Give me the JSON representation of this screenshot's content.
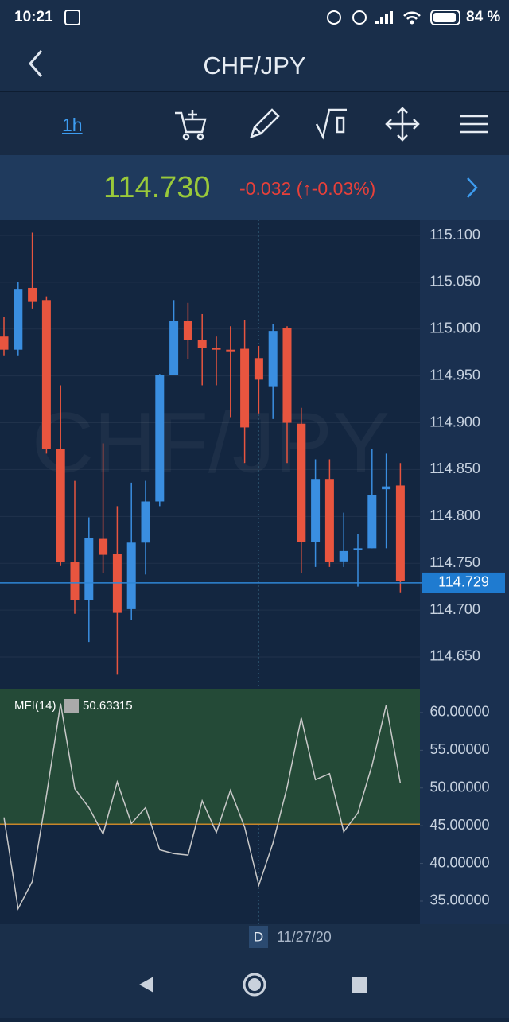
{
  "status_bar": {
    "time": "10:21",
    "battery": "84 %"
  },
  "header": {
    "title": "CHF/JPY"
  },
  "toolbar": {
    "timeframe": "1h"
  },
  "quote": {
    "price": "114.730",
    "change": "-0.032 (↑-0.03%)"
  },
  "footer": {
    "mode": "D",
    "date": "11/27/20"
  },
  "chart_data": [
    {
      "type": "candlestick",
      "watermark": "CHF/JPY",
      "open": [
        114.992,
        114.978,
        115.044,
        115.031,
        114.872,
        114.751,
        114.711,
        114.776,
        114.76,
        114.701,
        114.772,
        114.816,
        114.951,
        115.009,
        114.988,
        114.98,
        114.978,
        114.979,
        114.969,
        114.939,
        115.001,
        114.899,
        114.773,
        114.84,
        114.752,
        114.765,
        114.766,
        114.829,
        114.833
      ],
      "high": [
        115.013,
        115.05,
        115.103,
        115.035,
        114.94,
        114.838,
        114.799,
        114.878,
        114.811,
        114.836,
        114.838,
        114.952,
        115.031,
        115.028,
        115.016,
        114.992,
        115.003,
        115.01,
        114.982,
        115.005,
        115.003,
        114.916,
        114.861,
        114.861,
        114.804,
        114.781,
        114.872,
        114.867,
        114.857
      ],
      "low": [
        114.972,
        114.972,
        115.022,
        114.867,
        114.747,
        114.696,
        114.666,
        114.74,
        114.631,
        114.689,
        114.738,
        114.811,
        114.951,
        114.968,
        114.94,
        114.94,
        114.906,
        114.857,
        114.91,
        114.904,
        114.857,
        114.74,
        114.746,
        114.746,
        114.746,
        114.725,
        114.766,
        114.766,
        114.719
      ],
      "close": [
        114.978,
        115.043,
        115.029,
        114.872,
        114.751,
        114.711,
        114.777,
        114.759,
        114.697,
        114.772,
        114.816,
        114.951,
        115.009,
        114.988,
        114.98,
        114.978,
        114.977,
        114.895,
        114.946,
        114.998,
        114.9,
        114.773,
        114.84,
        114.751,
        114.763,
        114.766,
        114.823,
        114.832,
        114.731
      ],
      "up_color": "#3a8ee0",
      "down_color": "#e8553f",
      "last_price": {
        "value": 114.729,
        "label": "114.729"
      },
      "ylim": [
        114.616,
        115.117
      ],
      "yticks": [
        {
          "value": 115.1,
          "label": "115.100"
        },
        {
          "value": 115.05,
          "label": "115.050"
        },
        {
          "value": 115.0,
          "label": "115.000"
        },
        {
          "value": 114.95,
          "label": "114.950"
        },
        {
          "value": 114.9,
          "label": "114.900"
        },
        {
          "value": 114.85,
          "label": "114.850"
        },
        {
          "value": 114.8,
          "label": "114.800"
        },
        {
          "value": 114.75,
          "label": "114.750"
        },
        {
          "value": 114.7,
          "label": "114.700"
        },
        {
          "value": 114.65,
          "label": "114.650"
        }
      ],
      "grid": true
    },
    {
      "type": "line",
      "title": "MFI(14)",
      "color": "#c8c8c8",
      "values": [
        46.1,
        34.0,
        37.6,
        49.0,
        61.2,
        49.9,
        47.4,
        43.9,
        50.8,
        45.3,
        47.4,
        41.8,
        41.3,
        41.1,
        48.3,
        44.1,
        49.7,
        44.8,
        37.1,
        42.7,
        50.1,
        59.3,
        51.1,
        51.9,
        44.2,
        46.7,
        53.0,
        61.0,
        50.63315
      ],
      "value_labels": {
        "28": "50.63315"
      },
      "level": 45.2,
      "level_color": "#c8862a",
      "zone_color": "#244a37",
      "ylim": [
        31.94,
        63.16
      ],
      "yticks": [
        {
          "value": 60,
          "label": "60.00000"
        },
        {
          "value": 55,
          "label": "55.00000"
        },
        {
          "value": 50,
          "label": "50.00000"
        },
        {
          "value": 45,
          "label": "45.00000"
        },
        {
          "value": 40,
          "label": "40.00000"
        },
        {
          "value": 35,
          "label": "35.00000"
        }
      ]
    }
  ]
}
